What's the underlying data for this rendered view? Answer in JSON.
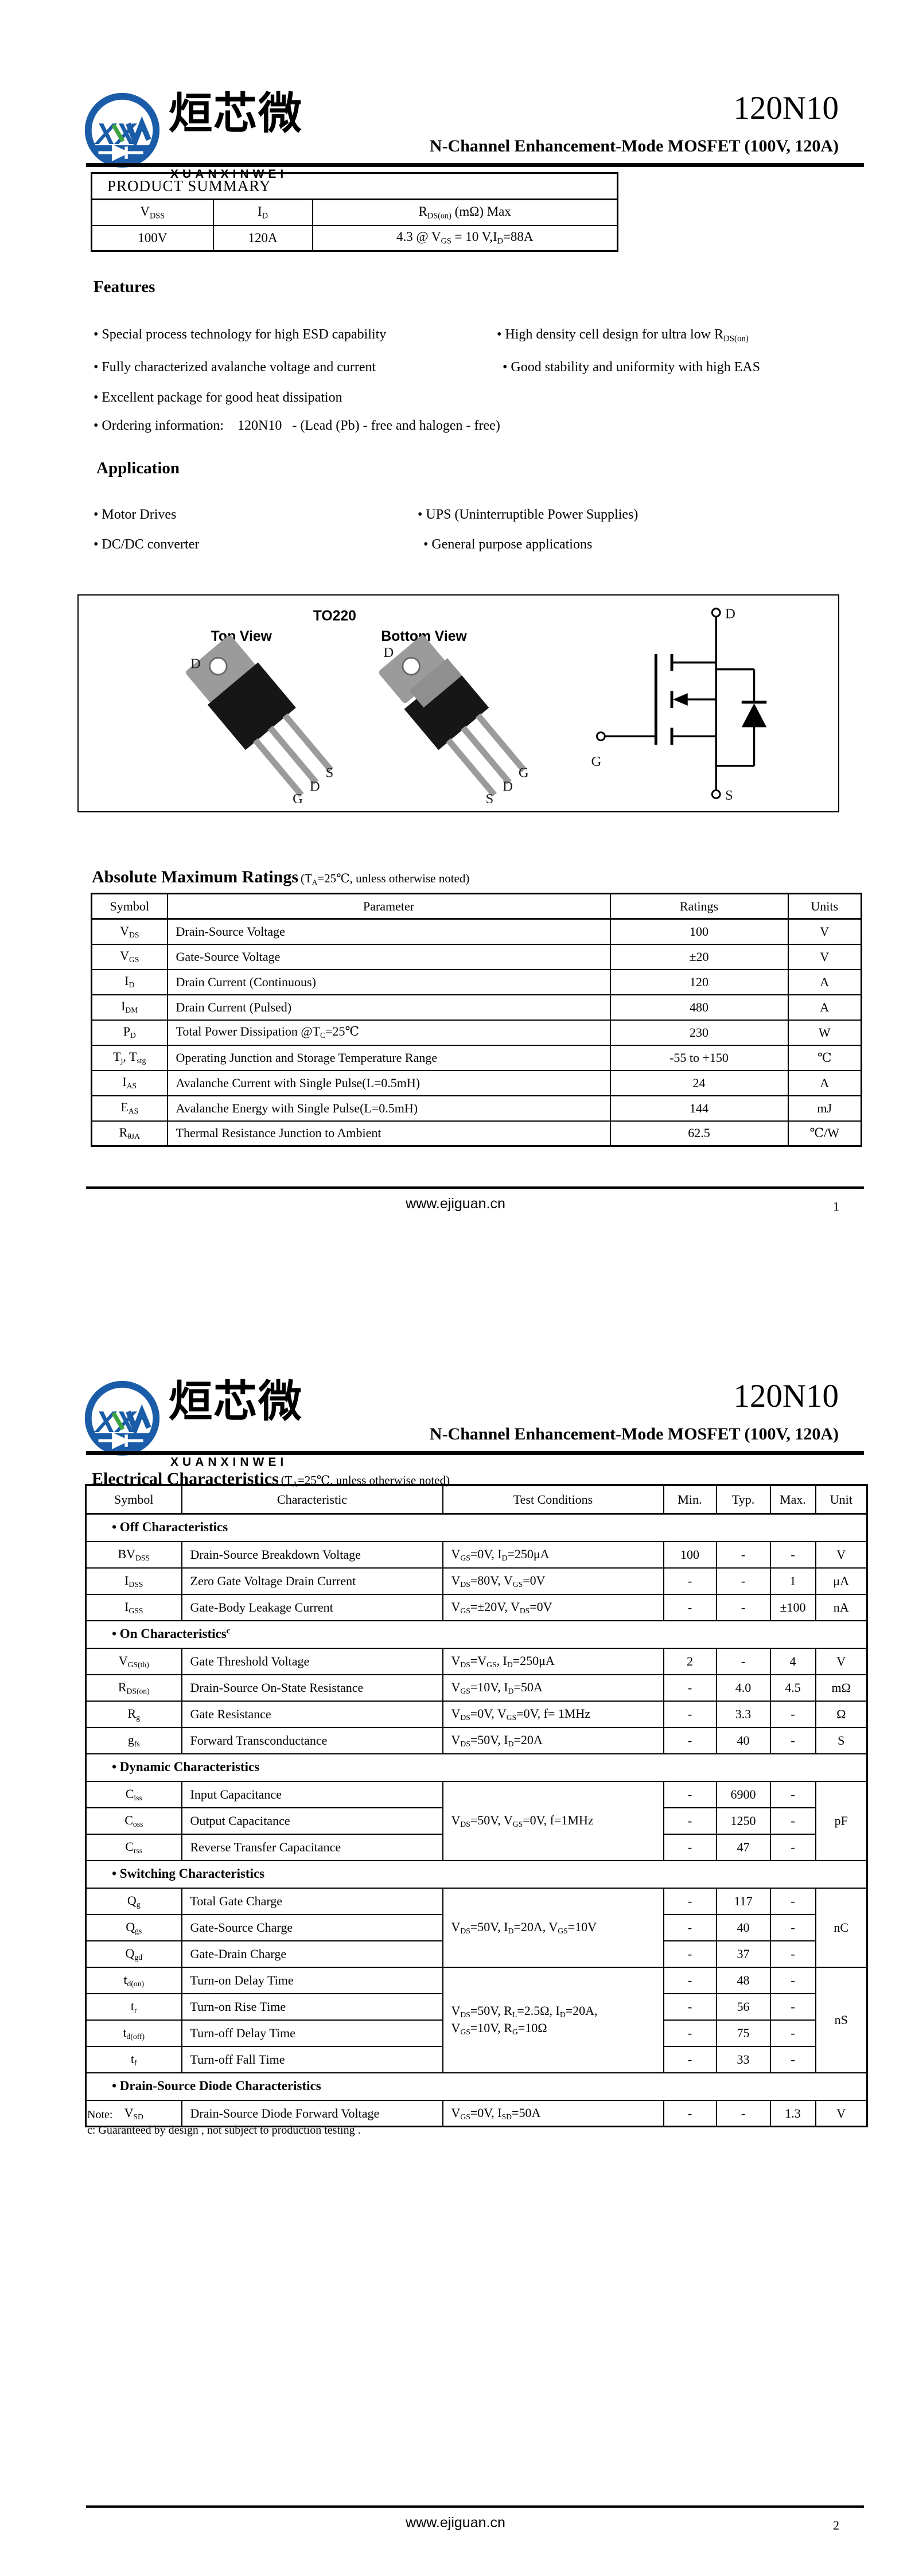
{
  "header": {
    "logo_text": "XX",
    "brand_cn": "烜芯微",
    "brand_en": "XUANXINWEI",
    "part_number": "120N10",
    "subtitle": "N-Channel Enhancement-Mode MOSFET (100V, 120A)",
    "brand_blue": "#1a5ca8",
    "brand_green": "#3ca23c"
  },
  "page1": {
    "product_summary": {
      "title": "PRODUCT SUMMARY",
      "headers": [
        "V~DSS~",
        "I~D~",
        "R~DS(on)~ (mΩ) Max"
      ],
      "values": [
        "100V",
        "120A",
        "4.3 @ V~GS~ = 10 V,I~D~=88A"
      ]
    },
    "features": {
      "title": "Features",
      "left": [
        "• Special process technology for high ESD capability",
        "• Fully characterized avalanche voltage and current",
        "• Excellent package for good heat dissipation",
        "• Ordering information:    120N10   - (Lead (Pb) - free and halogen - free)"
      ],
      "right": [
        "• High density cell design for ultra low R~DS(on)~",
        "• Good stability and uniformity with high EAS"
      ]
    },
    "application": {
      "title": "Application",
      "left": [
        "• Motor Drives",
        "• DC/DC converter"
      ],
      "right": [
        "• UPS (Uninterruptible Power Supplies)",
        "• General purpose applications"
      ]
    },
    "diagram": {
      "package": "TO220",
      "top_view": "Top View",
      "bottom_view": "Bottom View",
      "top_pins": {
        "tab": "D",
        "lead1": "G",
        "lead2": "D",
        "lead3": "S"
      },
      "bottom_pins": {
        "tab": "D",
        "lead1": "S",
        "lead2": "D",
        "lead3": "G"
      },
      "symbol": {
        "d": "D",
        "g": "G",
        "s": "S"
      }
    },
    "abs_max": {
      "title": "Absolute Maximum Ratings",
      "condition": "(T~A~=25℃, unless otherwise noted)",
      "headers": [
        "Symbol",
        "Parameter",
        "Ratings",
        "Units"
      ],
      "rows": [
        [
          "V~DS~",
          "Drain-Source Voltage",
          "100",
          "V"
        ],
        [
          "V~GS~",
          "Gate-Source Voltage",
          "±20",
          "V"
        ],
        [
          "I~D~",
          "Drain Current (Continuous)",
          "120",
          "A"
        ],
        [
          "I~DM~",
          "Drain Current (Pulsed)",
          "480",
          "A"
        ],
        [
          "P~D~",
          "Total Power Dissipation @T~C~=25℃",
          "230",
          "W"
        ],
        [
          "T~j~, T~stg~",
          "Operating Junction and Storage Temperature Range",
          "-55 to +150",
          "℃"
        ],
        [
          "I~AS~",
          "Avalanche Current with Single Pulse(L=0.5mH)",
          "24",
          "A"
        ],
        [
          "E~AS~",
          "Avalanche Energy with Single Pulse(L=0.5mH)",
          "144",
          "mJ"
        ],
        [
          "R~θJA~",
          "Thermal Resistance Junction to Ambient",
          "62.5",
          "℃/W"
        ]
      ]
    },
    "footer": {
      "url": "www.ejiguan.cn",
      "page": "1"
    }
  },
  "page2": {
    "elec": {
      "title": "Electrical Characteristics",
      "condition": "(T~A~=25℃, unless otherwise noted)",
      "headers": [
        "Symbol",
        "Characteristic",
        "Test Conditions",
        "Min.",
        "Typ.",
        "Max.",
        "Unit"
      ],
      "rows": [
        {
          "band": "• Off Characteristics"
        },
        {
          "cells": [
            {
              "t": "BV~DSS~",
              "c": 0
            },
            {
              "t": "Drain-Source Breakdown Voltage",
              "c": 1
            },
            {
              "t": "V~GS~=0V, I~D~=250μA",
              "c": 2
            },
            {
              "t": "100",
              "c": 3
            },
            {
              "t": "-",
              "c": 4
            },
            {
              "t": "-",
              "c": 5
            },
            {
              "t": "V",
              "c": 6
            }
          ]
        },
        {
          "cells": [
            {
              "t": "I~DSS~",
              "c": 0
            },
            {
              "t": "Zero Gate Voltage Drain Current",
              "c": 1
            },
            {
              "t": "V~DS~=80V, V~GS~=0V",
              "c": 2
            },
            {
              "t": "-",
              "c": 3
            },
            {
              "t": "-",
              "c": 4
            },
            {
              "t": "1",
              "c": 5
            },
            {
              "t": "μA",
              "c": 6
            }
          ]
        },
        {
          "cells": [
            {
              "t": "I~GSS~",
              "c": 0
            },
            {
              "t": "Gate-Body Leakage Current",
              "c": 1
            },
            {
              "t": "V~GS~=±20V, V~DS~=0V",
              "c": 2
            },
            {
              "t": "-",
              "c": 3
            },
            {
              "t": "-",
              "c": 4
            },
            {
              "t": "±100",
              "c": 5
            },
            {
              "t": "nA",
              "c": 6
            }
          ]
        },
        {
          "band": "• On Characteristics^c^"
        },
        {
          "cells": [
            {
              "t": "V~GS(th)~",
              "c": 0
            },
            {
              "t": "Gate Threshold Voltage",
              "c": 1
            },
            {
              "t": "V~DS~=V~GS~, I~D~=250μA",
              "c": 2
            },
            {
              "t": "2",
              "c": 3
            },
            {
              "t": "-",
              "c": 4
            },
            {
              "t": "4",
              "c": 5
            },
            {
              "t": "V",
              "c": 6
            }
          ]
        },
        {
          "cells": [
            {
              "t": "R~DS(on)~",
              "c": 0
            },
            {
              "t": "Drain-Source On-State Resistance",
              "c": 1
            },
            {
              "t": "V~GS~=10V, I~D~=50A",
              "c": 2
            },
            {
              "t": "-",
              "c": 3
            },
            {
              "t": "4.0",
              "c": 4
            },
            {
              "t": "4.5",
              "c": 5
            },
            {
              "t": "mΩ",
              "c": 6
            }
          ]
        },
        {
          "cells": [
            {
              "t": "R~g~",
              "c": 0
            },
            {
              "t": "Gate Resistance",
              "c": 1
            },
            {
              "t": "V~DS~=0V, V~GS~=0V, f= 1MHz",
              "c": 2
            },
            {
              "t": "-",
              "c": 3
            },
            {
              "t": "3.3",
              "c": 4
            },
            {
              "t": "-",
              "c": 5
            },
            {
              "t": "Ω",
              "c": 6
            }
          ]
        },
        {
          "cells": [
            {
              "t": "g~fs~",
              "c": 0
            },
            {
              "t": "Forward Transconductance",
              "c": 1
            },
            {
              "t": "V~DS~=50V, I~D~=20A",
              "c": 2
            },
            {
              "t": "-",
              "c": 3
            },
            {
              "t": "40",
              "c": 4
            },
            {
              "t": "-",
              "c": 5
            },
            {
              "t": "S",
              "c": 6
            }
          ]
        },
        {
          "band": "• Dynamic Characteristics"
        },
        {
          "cells": [
            {
              "t": "C~iss~",
              "c": 0
            },
            {
              "t": "Input Capacitance",
              "c": 1
            },
            {
              "t": "V~DS~=50V, V~GS~=0V, f=1MHz",
              "c": 2,
              "rs": 3
            },
            {
              "t": "-",
              "c": 3
            },
            {
              "t": "6900",
              "c": 4
            },
            {
              "t": "-",
              "c": 5
            },
            {
              "t": "pF",
              "c": 6,
              "rs": 3
            }
          ]
        },
        {
          "cells": [
            {
              "t": "C~oss~",
              "c": 0
            },
            {
              "t": "Output Capacitance",
              "c": 1
            },
            {
              "t": "-",
              "c": 3
            },
            {
              "t": "1250",
              "c": 4
            },
            {
              "t": "-",
              "c": 5
            }
          ]
        },
        {
          "cells": [
            {
              "t": "C~rss~",
              "c": 0
            },
            {
              "t": "Reverse Transfer Capacitance",
              "c": 1
            },
            {
              "t": "-",
              "c": 3
            },
            {
              "t": "47",
              "c": 4
            },
            {
              "t": "-",
              "c": 5
            }
          ]
        },
        {
          "band": "• Switching Characteristics"
        },
        {
          "cells": [
            {
              "t": "Q~g~",
              "c": 0
            },
            {
              "t": "Total Gate Charge",
              "c": 1
            },
            {
              "t": "V~DS~=50V, I~D~=20A, V~GS~=10V",
              "c": 2,
              "rs": 3
            },
            {
              "t": "-",
              "c": 3
            },
            {
              "t": "117",
              "c": 4
            },
            {
              "t": "-",
              "c": 5
            },
            {
              "t": "nC",
              "c": 6,
              "rs": 3
            }
          ]
        },
        {
          "cells": [
            {
              "t": "Q~gs~",
              "c": 0
            },
            {
              "t": "Gate-Source Charge",
              "c": 1
            },
            {
              "t": "-",
              "c": 3
            },
            {
              "t": "40",
              "c": 4
            },
            {
              "t": "-",
              "c": 5
            }
          ]
        },
        {
          "cells": [
            {
              "t": "Q~gd~",
              "c": 0
            },
            {
              "t": "Gate-Drain Charge",
              "c": 1
            },
            {
              "t": "-",
              "c": 3
            },
            {
              "t": "37",
              "c": 4
            },
            {
              "t": "-",
              "c": 5
            }
          ]
        },
        {
          "cells": [
            {
              "t": "t~d(on)~",
              "c": 0
            },
            {
              "t": "Turn-on Delay Time",
              "c": 1
            },
            {
              "t": "V~DS~=50V, R~L~=2.5Ω, I~D~=20A,\nV~GS~=10V, R~G~=10Ω",
              "c": 2,
              "rs": 4
            },
            {
              "t": "-",
              "c": 3
            },
            {
              "t": "48",
              "c": 4
            },
            {
              "t": "-",
              "c": 5
            },
            {
              "t": "nS",
              "c": 6,
              "rs": 4
            }
          ]
        },
        {
          "cells": [
            {
              "t": "t~r~",
              "c": 0
            },
            {
              "t": "Turn-on Rise Time",
              "c": 1
            },
            {
              "t": "-",
              "c": 3
            },
            {
              "t": "56",
              "c": 4
            },
            {
              "t": "-",
              "c": 5
            }
          ]
        },
        {
          "cells": [
            {
              "t": "t~d(off)~",
              "c": 0
            },
            {
              "t": "Turn-off Delay Time",
              "c": 1
            },
            {
              "t": "-",
              "c": 3
            },
            {
              "t": "75",
              "c": 4
            },
            {
              "t": "-",
              "c": 5
            }
          ]
        },
        {
          "cells": [
            {
              "t": "t~f~",
              "c": 0
            },
            {
              "t": "Turn-off Fall Time",
              "c": 1
            },
            {
              "t": "-",
              "c": 3
            },
            {
              "t": "33",
              "c": 4
            },
            {
              "t": "-",
              "c": 5
            }
          ]
        },
        {
          "band": "• Drain-Source Diode Characteristics"
        },
        {
          "cells": [
            {
              "t": "V~SD~",
              "c": 0
            },
            {
              "t": "Drain-Source Diode Forward Voltage",
              "c": 1
            },
            {
              "t": "V~GS~=0V, I~SD~=50A",
              "c": 2
            },
            {
              "t": "-",
              "c": 3
            },
            {
              "t": "-",
              "c": 4
            },
            {
              "t": "1.3",
              "c": 5
            },
            {
              "t": "V",
              "c": 6
            }
          ]
        }
      ]
    },
    "note": {
      "line1": "Note:",
      "line2": "c: Guaranteed by design , not subject to production testing ."
    },
    "footer": {
      "url": "www.ejiguan.cn",
      "page": "2"
    }
  }
}
